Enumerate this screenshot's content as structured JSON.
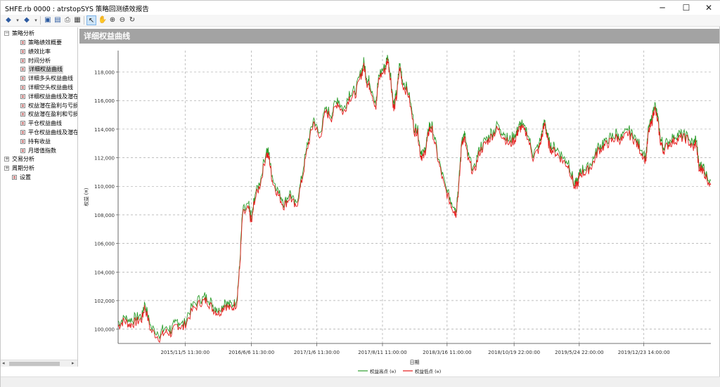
{
  "window": {
    "title": "SHFE.rb 0000 : atrstopSYS 策略回测绩效报告"
  },
  "tree": {
    "sections": [
      {
        "label": "策略分析",
        "expanded": true,
        "items": [
          "策略绩效概要",
          "绩效比率",
          "时间分析",
          "详细权益曲线",
          "详细多头权益曲线",
          "详细空头权益曲线",
          "详细权益曲线及潜在",
          "权益潜在盈利与亏损",
          "权益潜在盈利和亏损",
          "平仓权益曲线",
          "平仓权益曲线及潜在",
          "持有收益",
          "月增值指数"
        ],
        "selected_index": 3
      },
      {
        "label": "交易分析",
        "expanded": false,
        "items": []
      },
      {
        "label": "周期分析",
        "expanded": false,
        "items": []
      }
    ],
    "settings_label": "设置"
  },
  "panel": {
    "title": "详细权益曲线"
  },
  "chart_data": {
    "type": "line",
    "title": "",
    "xlabel": "日期",
    "ylabel": "权益 (¤)",
    "ylim": [
      99000,
      119500
    ],
    "grid": true,
    "y_ticks": [
      "100,000",
      "102,000",
      "104,000",
      "106,000",
      "108,000",
      "110,000",
      "112,000",
      "114,000",
      "116,000",
      "118,000"
    ],
    "y_tick_values": [
      100000,
      102000,
      104000,
      106000,
      108000,
      110000,
      112000,
      114000,
      116000,
      118000
    ],
    "x_ticks": [
      "2015/11/5 11:30:00",
      "2016/6/6 11:30:00",
      "2017/1/6 11:30:00",
      "2017/8/11 11:00:00",
      "2018/3/16 11:00:00",
      "2018/10/19 22:00:00",
      "2019/5/24 22:00:00",
      "2019/12/23 14:00:00"
    ],
    "x_tick_fractions": [
      0.113,
      0.225,
      0.335,
      0.446,
      0.555,
      0.668,
      0.778,
      0.887
    ],
    "legend_position": "bottom",
    "series": [
      {
        "name": "权益高点 (¤)",
        "color": "#2e9e2e"
      },
      {
        "name": "权益低点 (¤)",
        "color": "#e51c1c"
      }
    ],
    "equity_points": [
      [
        0.0,
        100200
      ],
      [
        0.01,
        100600
      ],
      [
        0.02,
        100300
      ],
      [
        0.03,
        100500
      ],
      [
        0.04,
        100700
      ],
      [
        0.045,
        101600
      ],
      [
        0.055,
        99900
      ],
      [
        0.07,
        99400
      ],
      [
        0.08,
        99800
      ],
      [
        0.09,
        99700
      ],
      [
        0.1,
        100300
      ],
      [
        0.11,
        100100
      ],
      [
        0.125,
        101300
      ],
      [
        0.14,
        101900
      ],
      [
        0.15,
        102000
      ],
      [
        0.16,
        101400
      ],
      [
        0.17,
        101100
      ],
      [
        0.18,
        101700
      ],
      [
        0.19,
        101400
      ],
      [
        0.2,
        101800
      ],
      [
        0.205,
        104200
      ],
      [
        0.21,
        108000
      ],
      [
        0.22,
        108400
      ],
      [
        0.225,
        107400
      ],
      [
        0.23,
        109000
      ],
      [
        0.24,
        110200
      ],
      [
        0.25,
        112300
      ],
      [
        0.255,
        111900
      ],
      [
        0.26,
        110400
      ],
      [
        0.27,
        109400
      ],
      [
        0.28,
        108600
      ],
      [
        0.29,
        109300
      ],
      [
        0.3,
        108400
      ],
      [
        0.31,
        110400
      ],
      [
        0.32,
        112800
      ],
      [
        0.33,
        114500
      ],
      [
        0.34,
        113300
      ],
      [
        0.35,
        115200
      ],
      [
        0.36,
        114800
      ],
      [
        0.37,
        115900
      ],
      [
        0.38,
        115100
      ],
      [
        0.39,
        116200
      ],
      [
        0.4,
        116400
      ],
      [
        0.41,
        117800
      ],
      [
        0.415,
        118400
      ],
      [
        0.42,
        117200
      ],
      [
        0.425,
        117000
      ],
      [
        0.435,
        115500
      ],
      [
        0.44,
        117600
      ],
      [
        0.45,
        118100
      ],
      [
        0.455,
        118900
      ],
      [
        0.46,
        117400
      ],
      [
        0.465,
        115300
      ],
      [
        0.47,
        116300
      ],
      [
        0.475,
        118300
      ],
      [
        0.48,
        117100
      ],
      [
        0.49,
        116400
      ],
      [
        0.5,
        113800
      ],
      [
        0.505,
        113900
      ],
      [
        0.51,
        112200
      ],
      [
        0.515,
        112000
      ],
      [
        0.52,
        112800
      ],
      [
        0.525,
        114000
      ],
      [
        0.53,
        113900
      ],
      [
        0.54,
        111800
      ],
      [
        0.55,
        110000
      ],
      [
        0.56,
        108900
      ],
      [
        0.565,
        108400
      ],
      [
        0.57,
        108100
      ],
      [
        0.575,
        110000
      ],
      [
        0.58,
        113200
      ],
      [
        0.585,
        113300
      ],
      [
        0.59,
        111900
      ],
      [
        0.6,
        110900
      ],
      [
        0.61,
        112400
      ],
      [
        0.62,
        113000
      ],
      [
        0.63,
        113500
      ],
      [
        0.64,
        114000
      ],
      [
        0.65,
        113500
      ],
      [
        0.66,
        112900
      ],
      [
        0.67,
        113300
      ],
      [
        0.675,
        113900
      ],
      [
        0.68,
        114100
      ],
      [
        0.69,
        113600
      ],
      [
        0.7,
        112000
      ],
      [
        0.71,
        112600
      ],
      [
        0.715,
        113500
      ],
      [
        0.72,
        114400
      ],
      [
        0.725,
        113100
      ],
      [
        0.73,
        112600
      ],
      [
        0.74,
        112300
      ],
      [
        0.75,
        111800
      ],
      [
        0.76,
        111400
      ],
      [
        0.77,
        109900
      ],
      [
        0.775,
        110100
      ],
      [
        0.78,
        110900
      ],
      [
        0.79,
        111000
      ],
      [
        0.8,
        111500
      ],
      [
        0.81,
        112500
      ],
      [
        0.82,
        112800
      ],
      [
        0.83,
        113100
      ],
      [
        0.84,
        113400
      ],
      [
        0.85,
        113200
      ],
      [
        0.86,
        113700
      ],
      [
        0.87,
        113300
      ],
      [
        0.88,
        112600
      ],
      [
        0.89,
        111800
      ],
      [
        0.895,
        113800
      ],
      [
        0.9,
        114400
      ],
      [
        0.905,
        115500
      ],
      [
        0.91,
        114600
      ],
      [
        0.915,
        113100
      ],
      [
        0.92,
        112500
      ],
      [
        0.93,
        113000
      ],
      [
        0.94,
        113200
      ],
      [
        0.95,
        113400
      ],
      [
        0.96,
        113300
      ],
      [
        0.97,
        112600
      ],
      [
        0.975,
        113100
      ],
      [
        0.98,
        111100
      ],
      [
        0.985,
        111300
      ],
      [
        0.99,
        110800
      ],
      [
        1.0,
        110100
      ]
    ]
  }
}
